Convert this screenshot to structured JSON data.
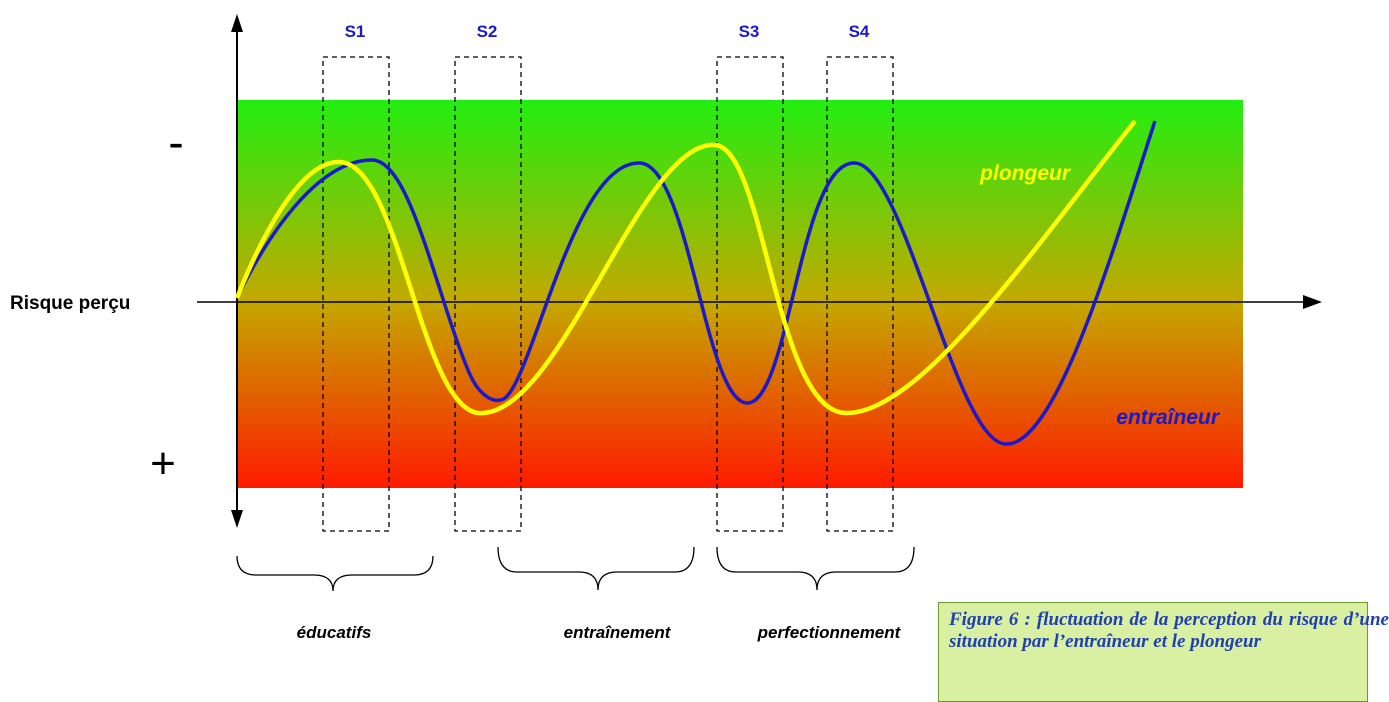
{
  "axis": {
    "y_label": "Risque perçu",
    "top_sign": "-",
    "bottom_sign": "+"
  },
  "sessions": [
    "S1",
    "S2",
    "S3",
    "S4"
  ],
  "phases": [
    "éducatifs",
    "entraînement",
    "perfectionnement"
  ],
  "series": {
    "plongeur": {
      "name": "plongeur",
      "color": "#ffff00"
    },
    "entraineur": {
      "name": "entraîneur",
      "color": "#1a1acc"
    }
  },
  "colors": {
    "gradient_top": "#22ee11",
    "gradient_mid": "#c4a800",
    "gradient_bottom": "#ff1a00",
    "session_label": "#1a1acc"
  },
  "caption": "Figure 6 : fluctuation de la perception du risque d’une situation par l’entraîneur et le plongeur"
}
